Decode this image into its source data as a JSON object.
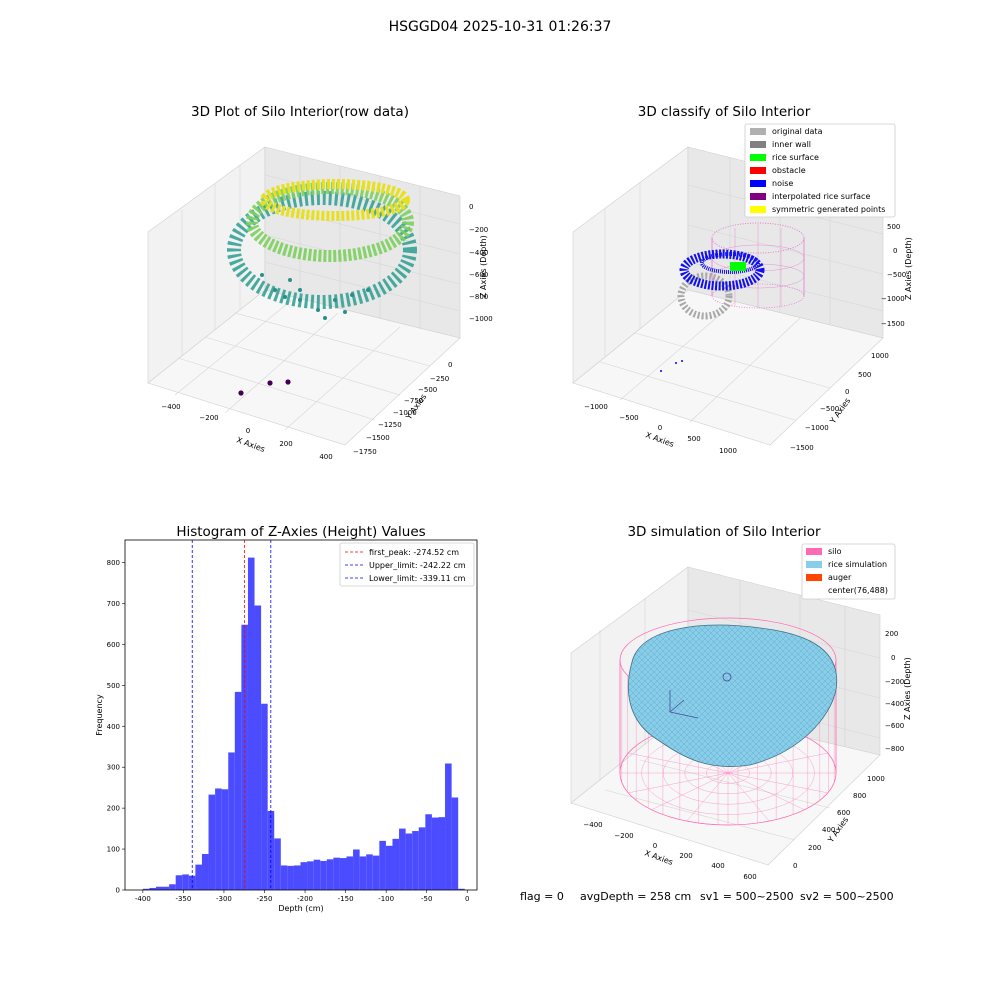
{
  "suptitle": "HSGGD04 2025-10-31 01:26:37",
  "footer": {
    "flag": "flag = 0",
    "avg": "avgDepth = 258 cm",
    "sv1": "sv1 = 500~2500",
    "sv2": "sv2 = 500~2500"
  },
  "colors": {
    "hist_bar": "#4b4bff",
    "peak_line": "#ff0000",
    "limit_line": "#0000ff",
    "silo_wire": "#ff69b4",
    "rice_surface": "#87ceeb"
  },
  "chart_data": [
    {
      "type": "scatter",
      "title": "3D Plot of Silo Interior(row data)",
      "xlabel": "X Axies",
      "ylabel": "Y Axies",
      "zlabel": "Z Axies (Depth)",
      "x_ticks": [
        "−400",
        "−200",
        "0",
        "200",
        "400"
      ],
      "y_ticks": [
        "0",
        "−250",
        "−500",
        "−750",
        "−1000",
        "−1250",
        "−1500",
        "−1750"
      ],
      "z_ticks": [
        "0",
        "−200",
        "−400",
        "−600",
        "−800",
        "−1000"
      ],
      "colormap": "viridis",
      "description_points": "ring-shaped cloud of points near the top of the silo with three outlier points at the bottom"
    },
    {
      "type": "scatter",
      "title": "3D classify of Silo Interior",
      "xlabel": "X Axies",
      "ylabel": "Y Axies",
      "zlabel": "Z Axies (Depth)",
      "x_ticks": [
        "−1000",
        "−500",
        "0",
        "500",
        "1000"
      ],
      "y_ticks": [
        "1000",
        "500",
        "0",
        "−500",
        "−1000",
        "−1500"
      ],
      "z_ticks": [
        "500",
        "0",
        "−500",
        "−1000",
        "−1500"
      ],
      "legend": [
        {
          "name": "original data",
          "color": "#b0b0b0"
        },
        {
          "name": "inner wall",
          "color": "#808080"
        },
        {
          "name": "rice surface",
          "color": "#00ff00"
        },
        {
          "name": "obstacle",
          "color": "#ff0000"
        },
        {
          "name": "noise",
          "color": "#0000ff"
        },
        {
          "name": "interpolated rice surface",
          "color": "#800080"
        },
        {
          "name": "symmetric generated points",
          "color": "#ffff00"
        }
      ],
      "legend_position": "top-right"
    },
    {
      "type": "bar",
      "title": "Histogram of Z-Axies (Height) Values",
      "xlabel": "Depth (cm)",
      "ylabel": "Frequency",
      "xlim": [
        -422,
        12
      ],
      "ylim": [
        0,
        855
      ],
      "x_ticks": [
        -400,
        -350,
        -300,
        -250,
        -200,
        -150,
        -100,
        -50,
        0
      ],
      "y_ticks": [
        0,
        100,
        200,
        300,
        400,
        500,
        600,
        700,
        800
      ],
      "bin_start": -400,
      "bin_width": 8.1,
      "values": [
        3,
        5,
        8,
        8,
        14,
        36,
        38,
        35,
        62,
        88,
        233,
        248,
        246,
        336,
        484,
        648,
        812,
        695,
        455,
        193,
        126,
        60,
        59,
        60,
        68,
        70,
        74,
        71,
        75,
        79,
        78,
        82,
        99,
        82,
        87,
        84,
        120,
        108,
        125,
        150,
        138,
        144,
        153,
        185,
        177,
        178,
        309,
        226,
        3
      ],
      "lines": [
        {
          "label": "first_peak: -274.52 cm",
          "x": -274.52,
          "color": "#ff0000"
        },
        {
          "label": "Upper_limit: -242.22 cm",
          "x": -242.22,
          "color": "#0000ff"
        },
        {
          "label": "Lower_limit: -339.11 cm",
          "x": -339.11,
          "color": "#0000ff"
        }
      ],
      "legend_position": "top-right"
    },
    {
      "type": "surface",
      "title": "3D simulation of Silo Interior",
      "xlabel": "X Axies",
      "ylabel": "Y Axies",
      "zlabel": "Z Axies (Depth)",
      "x_ticks": [
        "−400",
        "−200",
        "0",
        "200",
        "400",
        "600"
      ],
      "y_ticks": [
        "0",
        "200",
        "400",
        "600",
        "800",
        "1000"
      ],
      "z_ticks": [
        "200",
        "0",
        "−200",
        "−400",
        "−600",
        "−800"
      ],
      "legend": [
        {
          "name": "silo",
          "color": "#ff69b4"
        },
        {
          "name": "rice simulation",
          "color": "#87ceeb"
        },
        {
          "name": "auger",
          "color": "#ff4500"
        },
        {
          "name": "center(76,488)",
          "color": ""
        }
      ],
      "legend_position": "top-right"
    }
  ]
}
